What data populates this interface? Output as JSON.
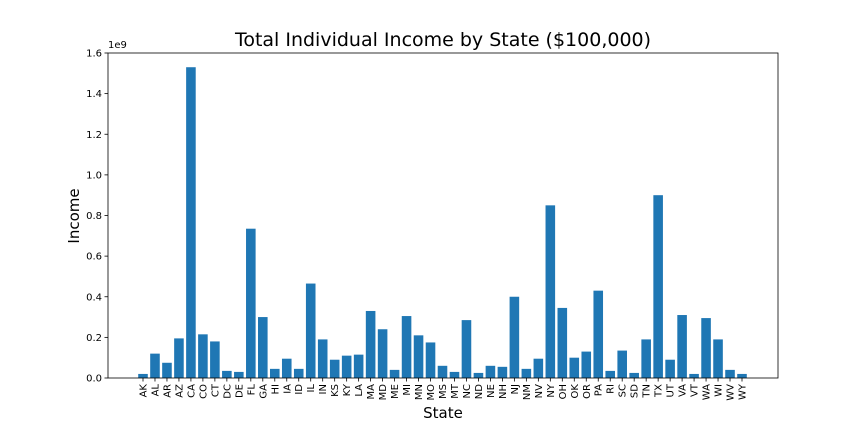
{
  "chart_data": {
    "type": "bar",
    "title": "Total Individual Income by State ($100,000)",
    "xlabel": "State",
    "ylabel": "Income",
    "y_offset_label": "1e9",
    "ylim": [
      0,
      1.6
    ],
    "yticks": [
      "0.0",
      "0.2",
      "0.4",
      "0.6",
      "0.8",
      "1.0",
      "1.2",
      "1.4",
      "1.6"
    ],
    "grid": false,
    "bar_color": "#1f77b4",
    "categories": [
      "AK",
      "AL",
      "AR",
      "AZ",
      "CA",
      "CO",
      "CT",
      "DC",
      "DE",
      "FL",
      "GA",
      "HI",
      "IA",
      "ID",
      "IL",
      "IN",
      "KS",
      "KY",
      "LA",
      "MA",
      "MD",
      "ME",
      "MI",
      "MN",
      "MO",
      "MS",
      "MT",
      "NC",
      "ND",
      "NE",
      "NH",
      "NJ",
      "NM",
      "NV",
      "NY",
      "OH",
      "OK",
      "OR",
      "PA",
      "RI",
      "SC",
      "SD",
      "TN",
      "TX",
      "UT",
      "VA",
      "VT",
      "WA",
      "WI",
      "WV",
      "WY"
    ],
    "values": [
      0.02,
      0.12,
      0.075,
      0.195,
      1.53,
      0.215,
      0.18,
      0.035,
      0.03,
      0.735,
      0.3,
      0.045,
      0.095,
      0.045,
      0.465,
      0.19,
      0.09,
      0.11,
      0.115,
      0.33,
      0.24,
      0.04,
      0.305,
      0.21,
      0.175,
      0.06,
      0.03,
      0.285,
      0.025,
      0.06,
      0.055,
      0.4,
      0.045,
      0.095,
      0.85,
      0.345,
      0.1,
      0.13,
      0.43,
      0.035,
      0.135,
      0.025,
      0.19,
      0.9,
      0.09,
      0.31,
      0.02,
      0.295,
      0.19,
      0.04,
      0.02
    ]
  }
}
